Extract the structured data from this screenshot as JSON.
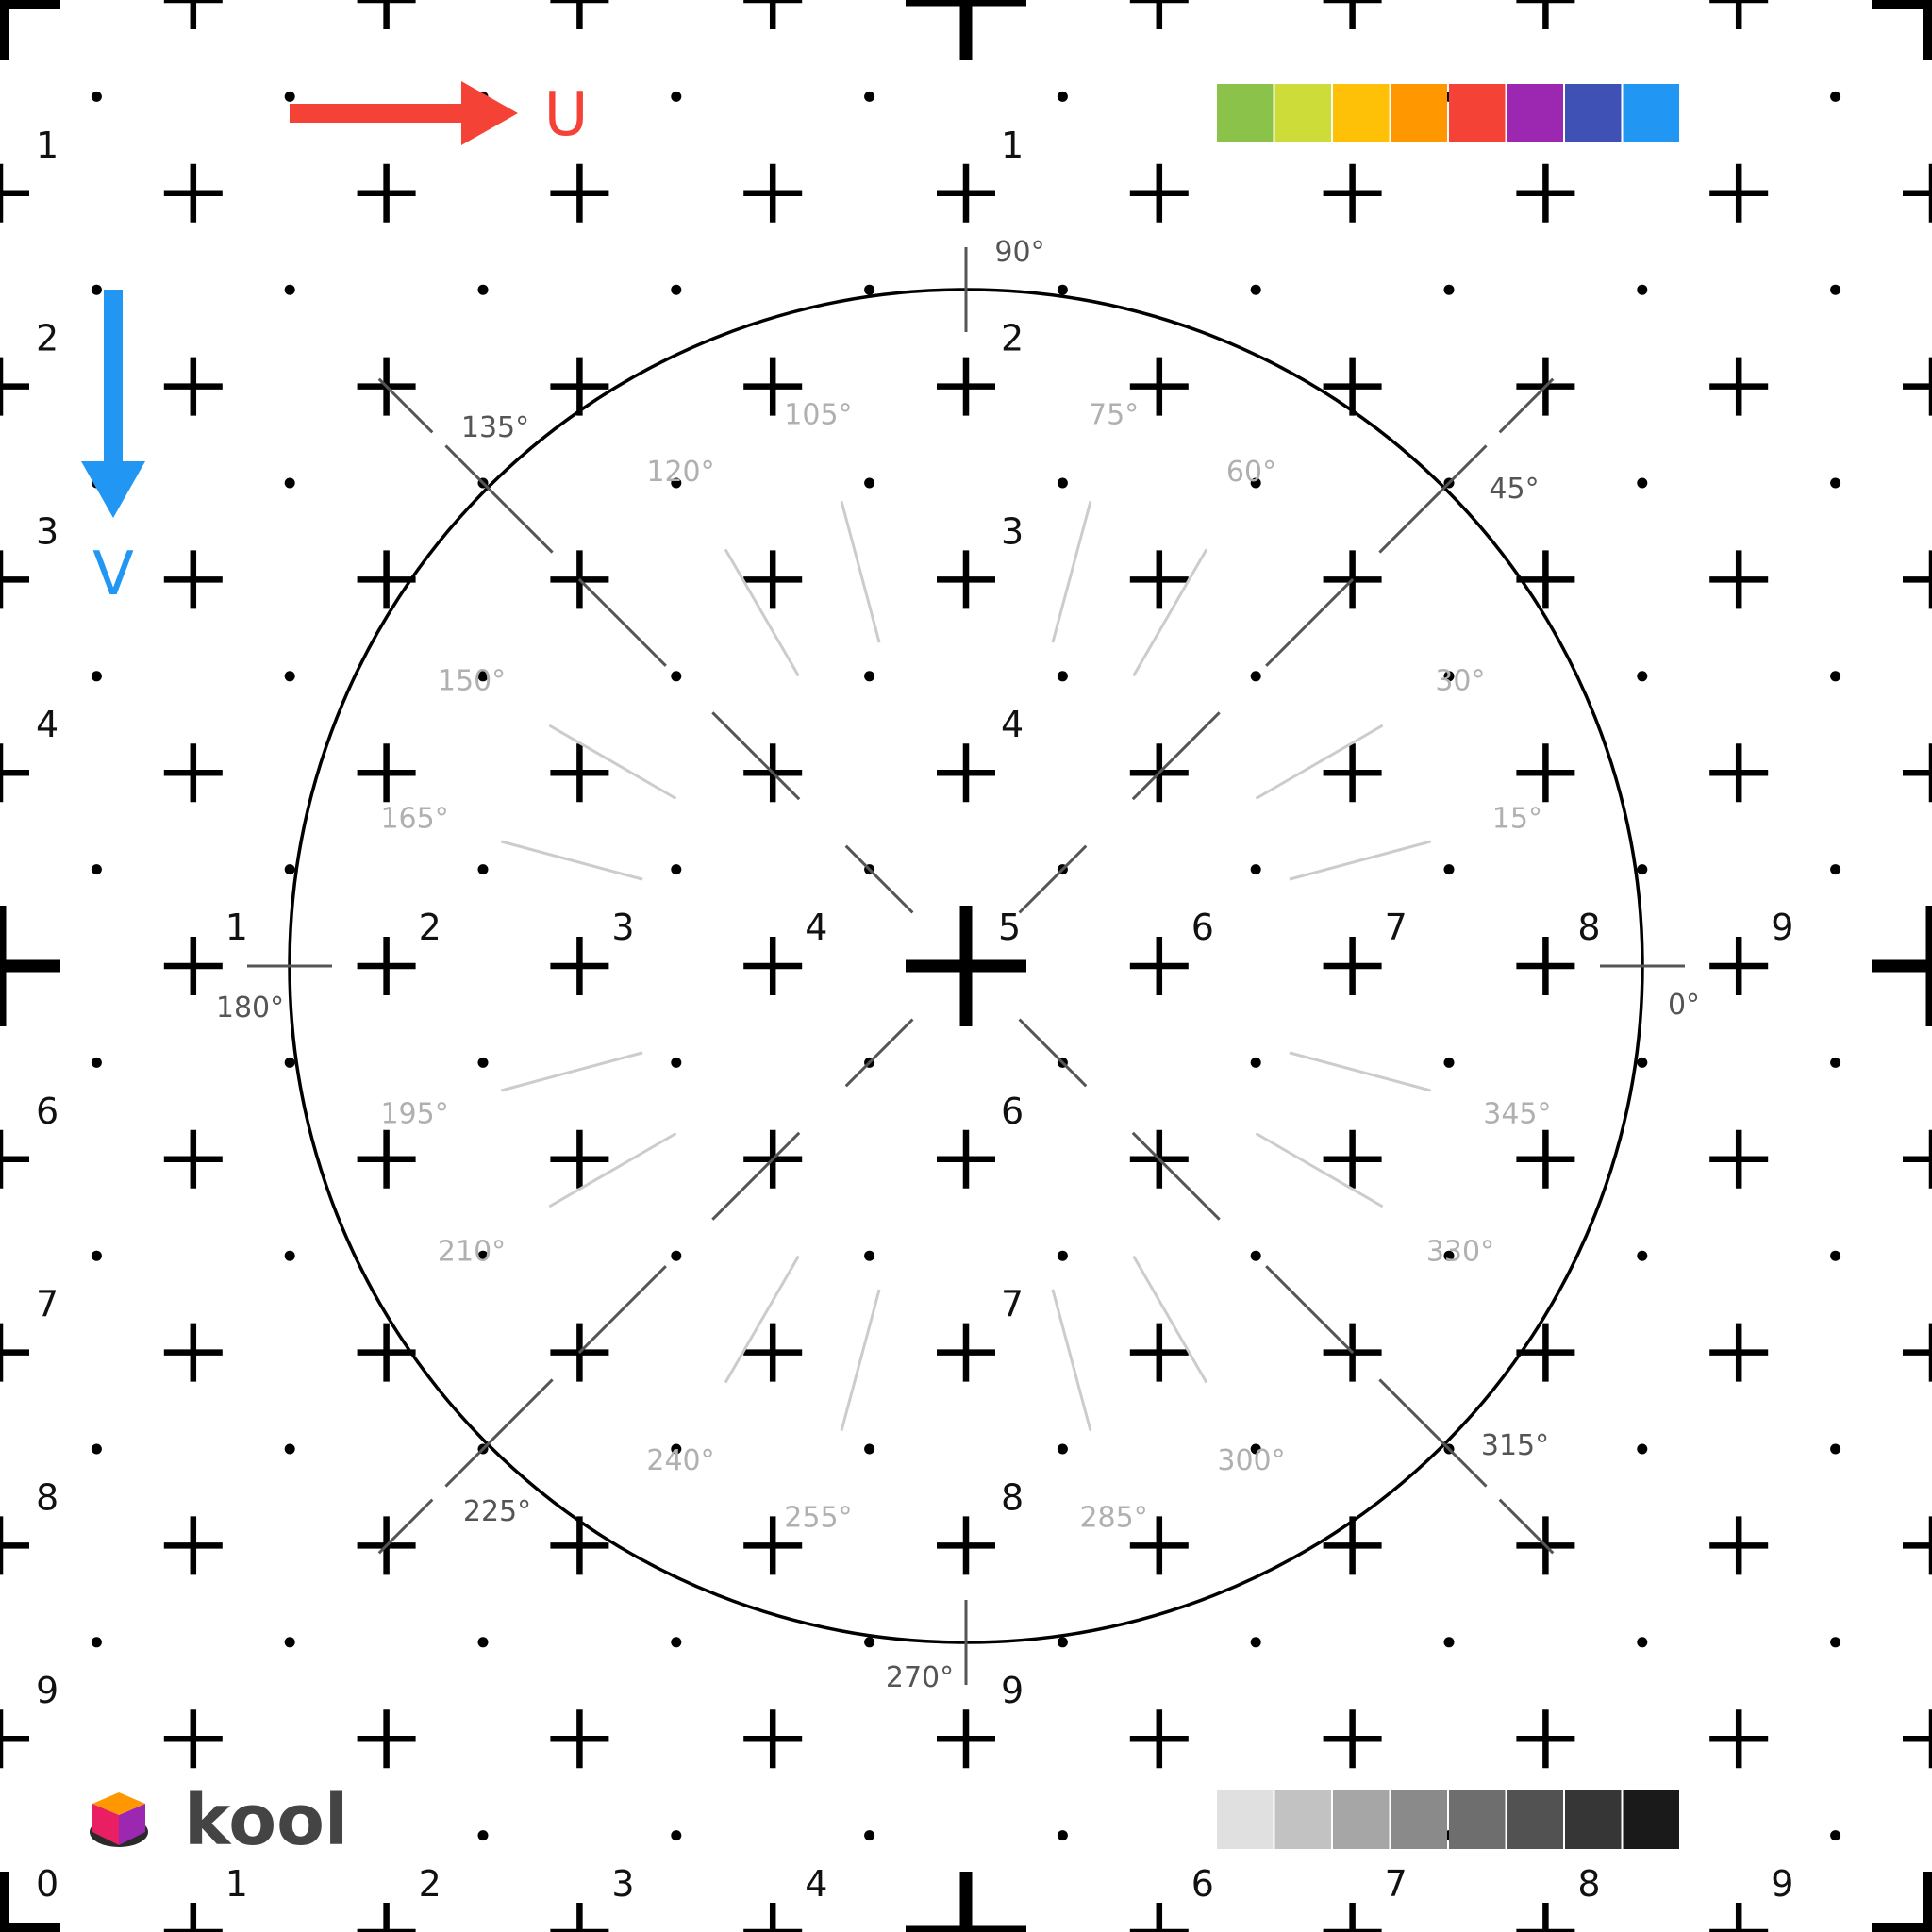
{
  "grid": {
    "labels_left_column": [
      "1",
      "2",
      "3",
      "4",
      "6",
      "7",
      "8",
      "9",
      "0"
    ],
    "labels_center_row": [
      "1",
      "2",
      "3",
      "4",
      "5",
      "6",
      "7",
      "8",
      "9"
    ],
    "labels_center_column": [
      "1",
      "2",
      "3",
      "4",
      "6",
      "7",
      "8",
      "9"
    ],
    "labels_bottom_row": [
      "1",
      "2",
      "3",
      "4",
      "6",
      "7",
      "8",
      "9"
    ]
  },
  "axes": {
    "u_label": "U",
    "v_label": "V",
    "u_color": "#f44336",
    "v_color": "#2196f3"
  },
  "angles": {
    "major": [
      "0°",
      "45°",
      "90°",
      "135°",
      "180°",
      "225°",
      "270°",
      "315°"
    ],
    "minor": [
      "15°",
      "30°",
      "60°",
      "75°",
      "105°",
      "120°",
      "150°",
      "165°",
      "195°",
      "210°",
      "240°",
      "255°",
      "285°",
      "300°",
      "330°",
      "345°"
    ]
  },
  "color_swatches": [
    "#8bc34a",
    "#cddc39",
    "#ffc107",
    "#ff9800",
    "#f44336",
    "#9c27b0",
    "#3f51b5",
    "#2196f3"
  ],
  "gray_swatches": [
    "#e0e0e0",
    "#c2c2c2",
    "#a6a6a6",
    "#8a8a8a",
    "#6e6e6e",
    "#525252",
    "#363636",
    "#1a1a1a"
  ],
  "logo": {
    "text": "kool",
    "icon": "cube-on-disk-icon"
  }
}
